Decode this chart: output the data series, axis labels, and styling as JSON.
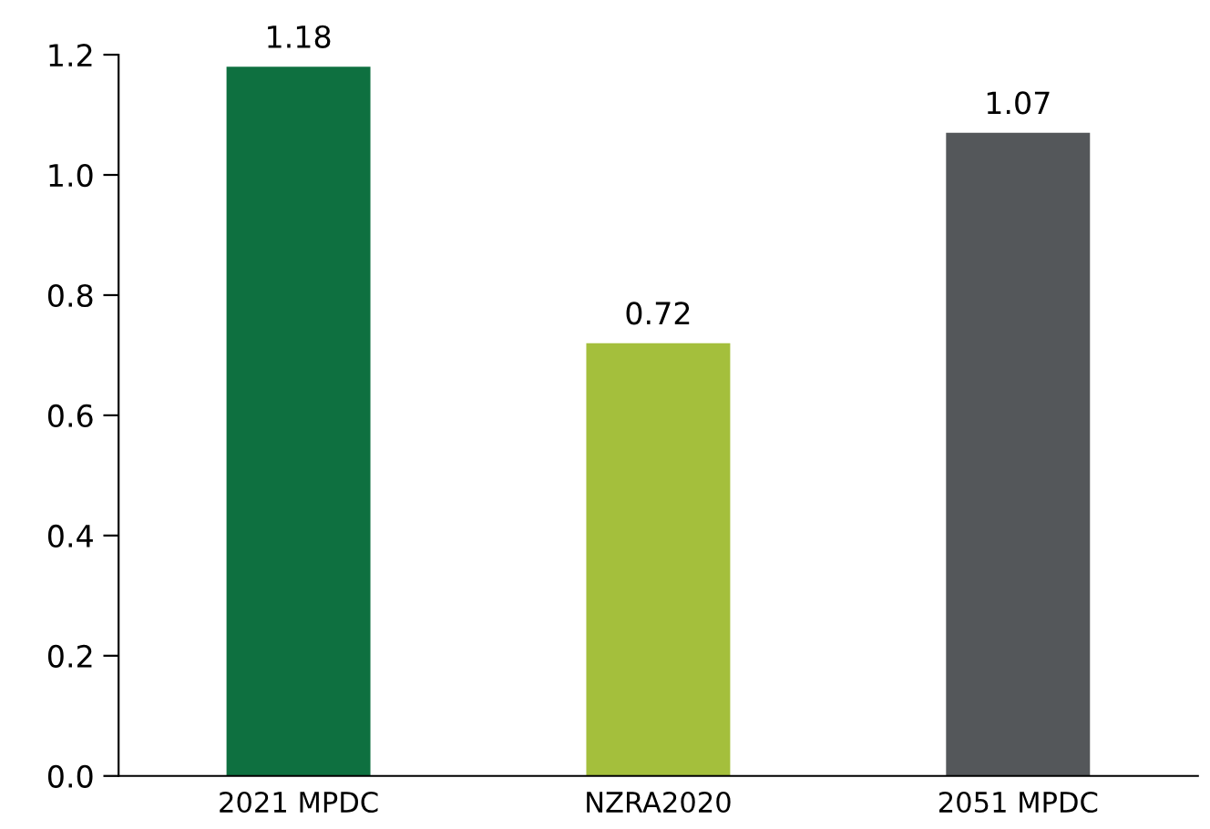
{
  "chart_data": {
    "type": "bar",
    "categories": [
      "2021 MPDC",
      "NZRA2020",
      "2051 MPDC"
    ],
    "values": [
      1.18,
      0.72,
      1.07
    ],
    "colors": [
      "#0e7040",
      "#a4bf3c",
      "#54575a"
    ],
    "ylim": [
      0,
      1.2
    ],
    "yticks": [
      {
        "value": 0,
        "label": "0.0"
      },
      0.2,
      0.4,
      0.6,
      0.8,
      {
        "value": 1.0,
        "label": "1.0"
      },
      1.2
    ],
    "data_labels": true,
    "grid": false,
    "legend": false
  }
}
